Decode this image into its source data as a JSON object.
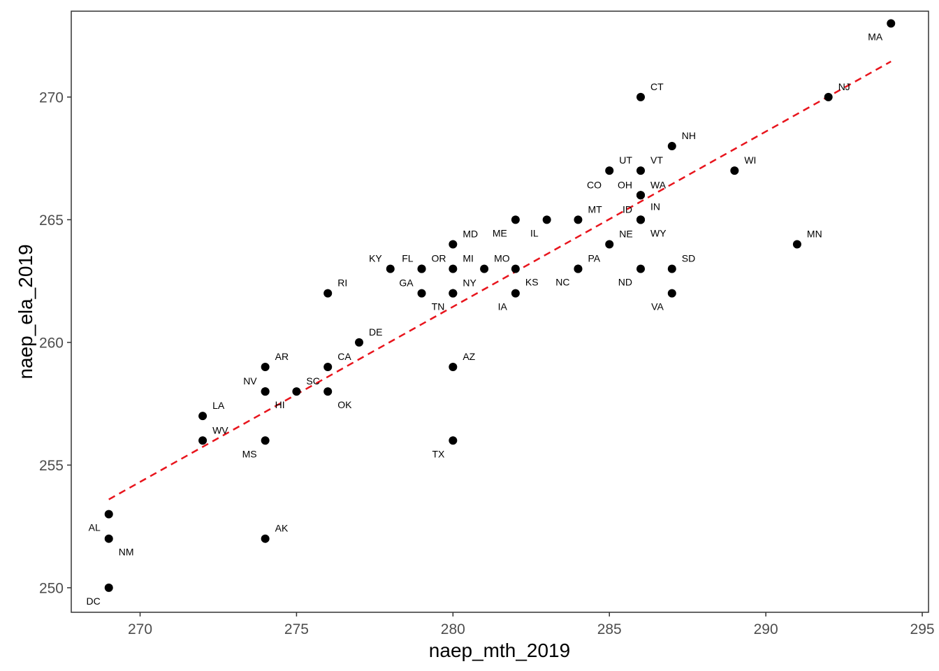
{
  "chart_data": {
    "type": "scatter",
    "title": "",
    "xlabel": "naep_mth_2019",
    "ylabel": "naep_ela_2019",
    "xlim": [
      267.8,
      295.2
    ],
    "ylim": [
      249.0,
      273.5
    ],
    "x_ticks": [
      270,
      275,
      280,
      285,
      290,
      295
    ],
    "y_ticks": [
      250,
      255,
      260,
      265,
      270
    ],
    "grid": false,
    "legend": "none",
    "point_color": "#000000",
    "fit_line": {
      "style": "dashed",
      "color": "#e8141c",
      "x": [
        269,
        294
      ],
      "y": [
        253.6,
        271.45
      ]
    },
    "points": [
      {
        "label": "MA",
        "x": 294,
        "y": 273,
        "pos": "bl"
      },
      {
        "label": "CT",
        "x": 286,
        "y": 270,
        "pos": "tr"
      },
      {
        "label": "NJ",
        "x": 292,
        "y": 270,
        "pos": "tr"
      },
      {
        "label": "NH",
        "x": 287,
        "y": 268,
        "pos": "tr"
      },
      {
        "label": "UT",
        "x": 285,
        "y": 267,
        "pos": "tr"
      },
      {
        "label": "VT",
        "x": 286,
        "y": 267,
        "pos": "tr"
      },
      {
        "label": "WI",
        "x": 289,
        "y": 267,
        "pos": "tr"
      },
      {
        "label": "CO",
        "x": 286,
        "y": 266,
        "pos": "tl2"
      },
      {
        "label": "OH",
        "x": 286,
        "y": 266,
        "pos": "tl"
      },
      {
        "label": "WA",
        "x": 286,
        "y": 266,
        "pos": "tr"
      },
      {
        "label": "ME",
        "x": 282,
        "y": 265,
        "pos": "bl"
      },
      {
        "label": "IL",
        "x": 283,
        "y": 265,
        "pos": "bl"
      },
      {
        "label": "MT",
        "x": 284,
        "y": 265,
        "pos": "tr"
      },
      {
        "label": "ID",
        "x": 286,
        "y": 265,
        "pos": "tl"
      },
      {
        "label": "IN",
        "x": 286,
        "y": 265,
        "pos": "tr2"
      },
      {
        "label": "WY",
        "x": 286,
        "y": 265,
        "pos": "br"
      },
      {
        "label": "MD",
        "x": 280,
        "y": 264,
        "pos": "tr"
      },
      {
        "label": "NE",
        "x": 285,
        "y": 264,
        "pos": "tr"
      },
      {
        "label": "MN",
        "x": 291,
        "y": 264,
        "pos": "tr"
      },
      {
        "label": "KY",
        "x": 278,
        "y": 263,
        "pos": "tl"
      },
      {
        "label": "FL",
        "x": 279,
        "y": 263,
        "pos": "tl"
      },
      {
        "label": "OR",
        "x": 279,
        "y": 263,
        "pos": "tr"
      },
      {
        "label": "MI",
        "x": 280,
        "y": 263,
        "pos": "tr"
      },
      {
        "label": "MO",
        "x": 281,
        "y": 263,
        "pos": "tr"
      },
      {
        "label": "KS",
        "x": 282,
        "y": 263,
        "pos": "br"
      },
      {
        "label": "PA",
        "x": 284,
        "y": 263,
        "pos": "tr"
      },
      {
        "label": "NC",
        "x": 284,
        "y": 263,
        "pos": "bl"
      },
      {
        "label": "ND",
        "x": 286,
        "y": 263,
        "pos": "bl"
      },
      {
        "label": "SD",
        "x": 287,
        "y": 263,
        "pos": "tr"
      },
      {
        "label": "RI",
        "x": 276,
        "y": 262,
        "pos": "tr"
      },
      {
        "label": "GA",
        "x": 279,
        "y": 262,
        "pos": "tl"
      },
      {
        "label": "TN",
        "x": 280,
        "y": 262,
        "pos": "bl"
      },
      {
        "label": "NY",
        "x": 280,
        "y": 262,
        "pos": "tr"
      },
      {
        "label": "IA",
        "x": 282,
        "y": 262,
        "pos": "bl"
      },
      {
        "label": "VA",
        "x": 287,
        "y": 262,
        "pos": "bl"
      },
      {
        "label": "DE",
        "x": 277,
        "y": 260,
        "pos": "tr"
      },
      {
        "label": "AR",
        "x": 274,
        "y": 259,
        "pos": "tr"
      },
      {
        "label": "CA",
        "x": 276,
        "y": 259,
        "pos": "tr"
      },
      {
        "label": "AZ",
        "x": 280,
        "y": 259,
        "pos": "tr"
      },
      {
        "label": "NV",
        "x": 274,
        "y": 258,
        "pos": "tl"
      },
      {
        "label": "HI",
        "x": 274,
        "y": 258,
        "pos": "br"
      },
      {
        "label": "SC",
        "x": 275,
        "y": 258,
        "pos": "tr"
      },
      {
        "label": "OK",
        "x": 276,
        "y": 258,
        "pos": "br"
      },
      {
        "label": "LA",
        "x": 272,
        "y": 257,
        "pos": "tr"
      },
      {
        "label": "WV",
        "x": 272,
        "y": 256,
        "pos": "tr"
      },
      {
        "label": "MS",
        "x": 274,
        "y": 256,
        "pos": "bl"
      },
      {
        "label": "TX",
        "x": 280,
        "y": 256,
        "pos": "bl"
      },
      {
        "label": "AL",
        "x": 269,
        "y": 253,
        "pos": "bl"
      },
      {
        "label": "NM",
        "x": 269,
        "y": 252,
        "pos": "br"
      },
      {
        "label": "AK",
        "x": 274,
        "y": 252,
        "pos": "tr"
      },
      {
        "label": "DC",
        "x": 269,
        "y": 250,
        "pos": "bl"
      }
    ]
  }
}
